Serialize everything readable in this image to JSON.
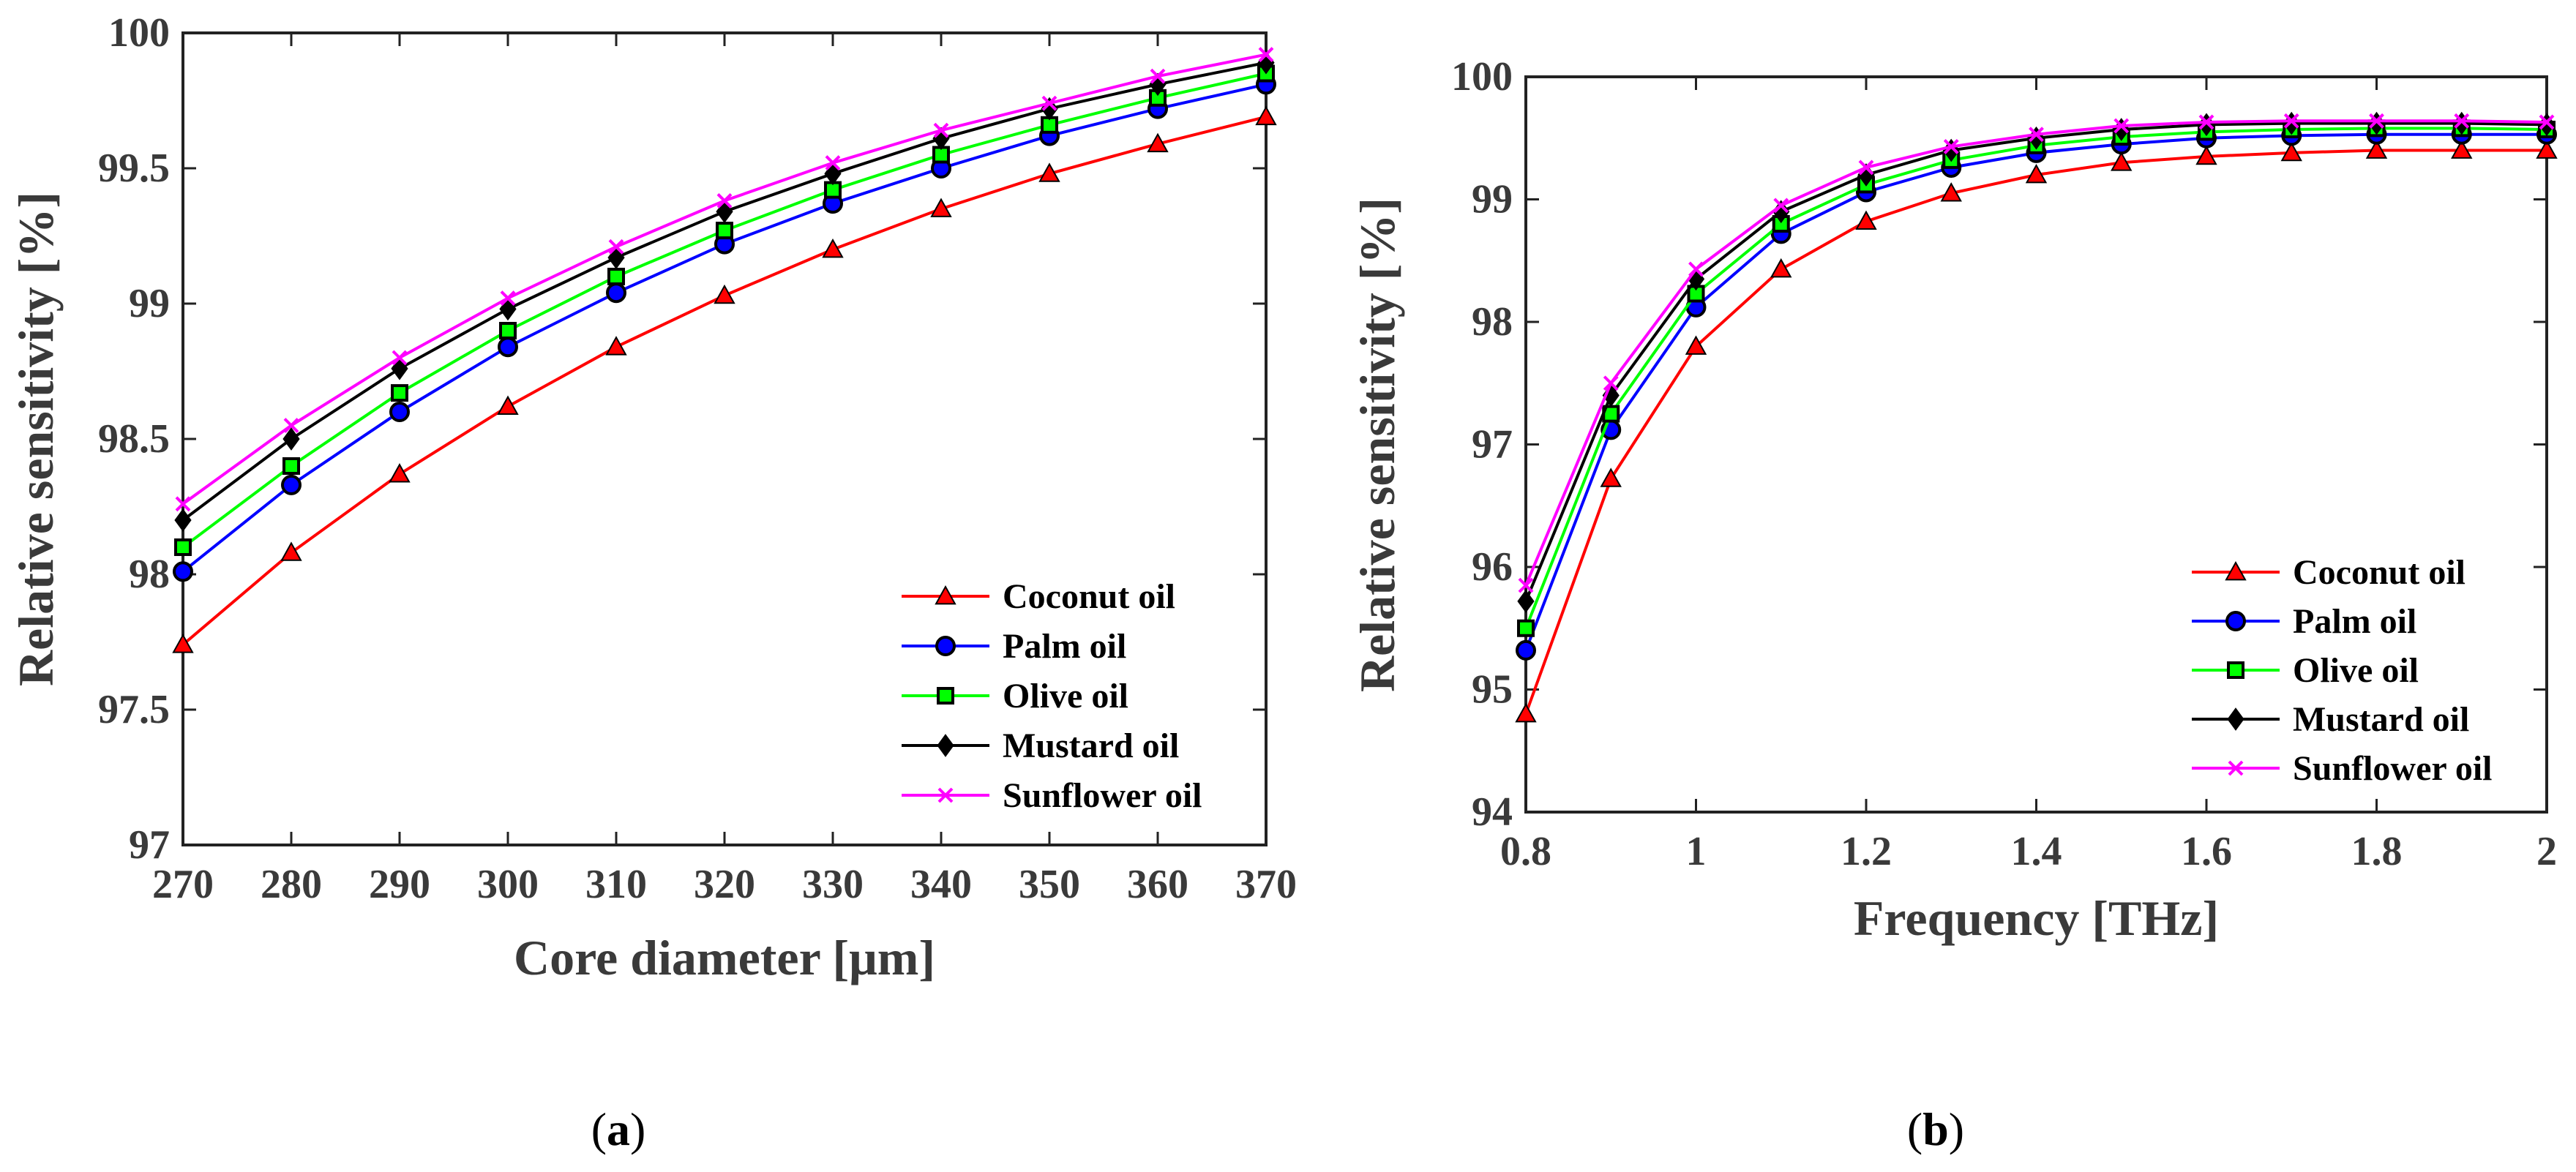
{
  "chart_data": [
    {
      "type": "line",
      "panel_label": "a",
      "xlabel": "Core diameter [μm]",
      "ylabel": "Relative sensitivity [%]",
      "x": [
        270,
        280,
        290,
        300,
        310,
        320,
        330,
        340,
        350,
        360,
        370
      ],
      "xlim": [
        270,
        370
      ],
      "ylim": [
        97,
        100
      ],
      "xticks": [
        "270",
        "280",
        "290",
        "300",
        "310",
        "320",
        "330",
        "340",
        "350",
        "360",
        "370"
      ],
      "yticks": [
        "97",
        "97.5",
        "98",
        "98.5",
        "99",
        "99.5",
        "100"
      ],
      "legend_position": "bottom-right",
      "series": [
        {
          "name": "Coconut oil",
          "color": "#ff0000",
          "marker": "triangle",
          "values": [
            97.74,
            98.08,
            98.37,
            98.62,
            98.84,
            99.03,
            99.2,
            99.35,
            99.48,
            99.59,
            99.69
          ]
        },
        {
          "name": "Palm oil",
          "color": "#0000ff",
          "marker": "circle",
          "values": [
            98.01,
            98.33,
            98.6,
            98.84,
            99.04,
            99.22,
            99.37,
            99.5,
            99.62,
            99.72,
            99.81
          ]
        },
        {
          "name": "Olive oil",
          "color": "#00ff00",
          "marker": "square",
          "values": [
            98.1,
            98.4,
            98.67,
            98.9,
            99.1,
            99.27,
            99.42,
            99.55,
            99.66,
            99.76,
            99.85
          ]
        },
        {
          "name": "Mustard oil",
          "color": "#000000",
          "marker": "diamond",
          "values": [
            98.2,
            98.5,
            98.76,
            98.98,
            99.17,
            99.34,
            99.48,
            99.61,
            99.72,
            99.81,
            99.89
          ]
        },
        {
          "name": "Sunflower oil",
          "color": "#ff00ff",
          "marker": "x",
          "values": [
            98.26,
            98.55,
            98.8,
            99.02,
            99.21,
            99.38,
            99.52,
            99.64,
            99.74,
            99.84,
            99.92
          ]
        }
      ]
    },
    {
      "type": "line",
      "panel_label": "b",
      "xlabel": "Frequency [THz]",
      "ylabel": "Relative sensitivity [%]",
      "x": [
        0.8,
        0.9,
        1.0,
        1.1,
        1.2,
        1.3,
        1.4,
        1.5,
        1.6,
        1.7,
        1.8,
        1.9,
        2.0
      ],
      "xlim": [
        0.8,
        2.0
      ],
      "ylim": [
        94,
        100
      ],
      "xticks": [
        "0.8",
        "1",
        "1.2",
        "1.4",
        "1.6",
        "1.8",
        "2"
      ],
      "xtick_values": [
        0.8,
        1.0,
        1.2,
        1.4,
        1.6,
        1.8,
        2.0
      ],
      "yticks": [
        "94",
        "95",
        "96",
        "97",
        "98",
        "99",
        "100"
      ],
      "legend_position": "bottom-right",
      "series": [
        {
          "name": "Coconut oil",
          "color": "#ff0000",
          "marker": "triangle",
          "values": [
            94.8,
            96.72,
            97.8,
            98.43,
            98.82,
            99.05,
            99.2,
            99.3,
            99.35,
            99.38,
            99.4,
            99.4,
            99.4
          ]
        },
        {
          "name": "Palm oil",
          "color": "#0000ff",
          "marker": "circle",
          "values": [
            95.32,
            97.12,
            98.12,
            98.72,
            99.06,
            99.26,
            99.38,
            99.45,
            99.5,
            99.52,
            99.53,
            99.53,
            99.53
          ]
        },
        {
          "name": "Olive oil",
          "color": "#00ff00",
          "marker": "square",
          "values": [
            95.5,
            97.25,
            98.23,
            98.8,
            99.12,
            99.32,
            99.44,
            99.51,
            99.55,
            99.57,
            99.58,
            99.58,
            99.57
          ]
        },
        {
          "name": "Mustard oil",
          "color": "#000000",
          "marker": "diamond",
          "values": [
            95.72,
            97.4,
            98.35,
            98.9,
            99.2,
            99.4,
            99.5,
            99.57,
            99.61,
            99.62,
            99.62,
            99.62,
            99.61
          ]
        },
        {
          "name": "Sunflower oil",
          "color": "#ff00ff",
          "marker": "x",
          "values": [
            95.85,
            97.5,
            98.43,
            98.95,
            99.26,
            99.43,
            99.53,
            99.6,
            99.63,
            99.64,
            99.64,
            99.64,
            99.63
          ]
        }
      ]
    }
  ]
}
